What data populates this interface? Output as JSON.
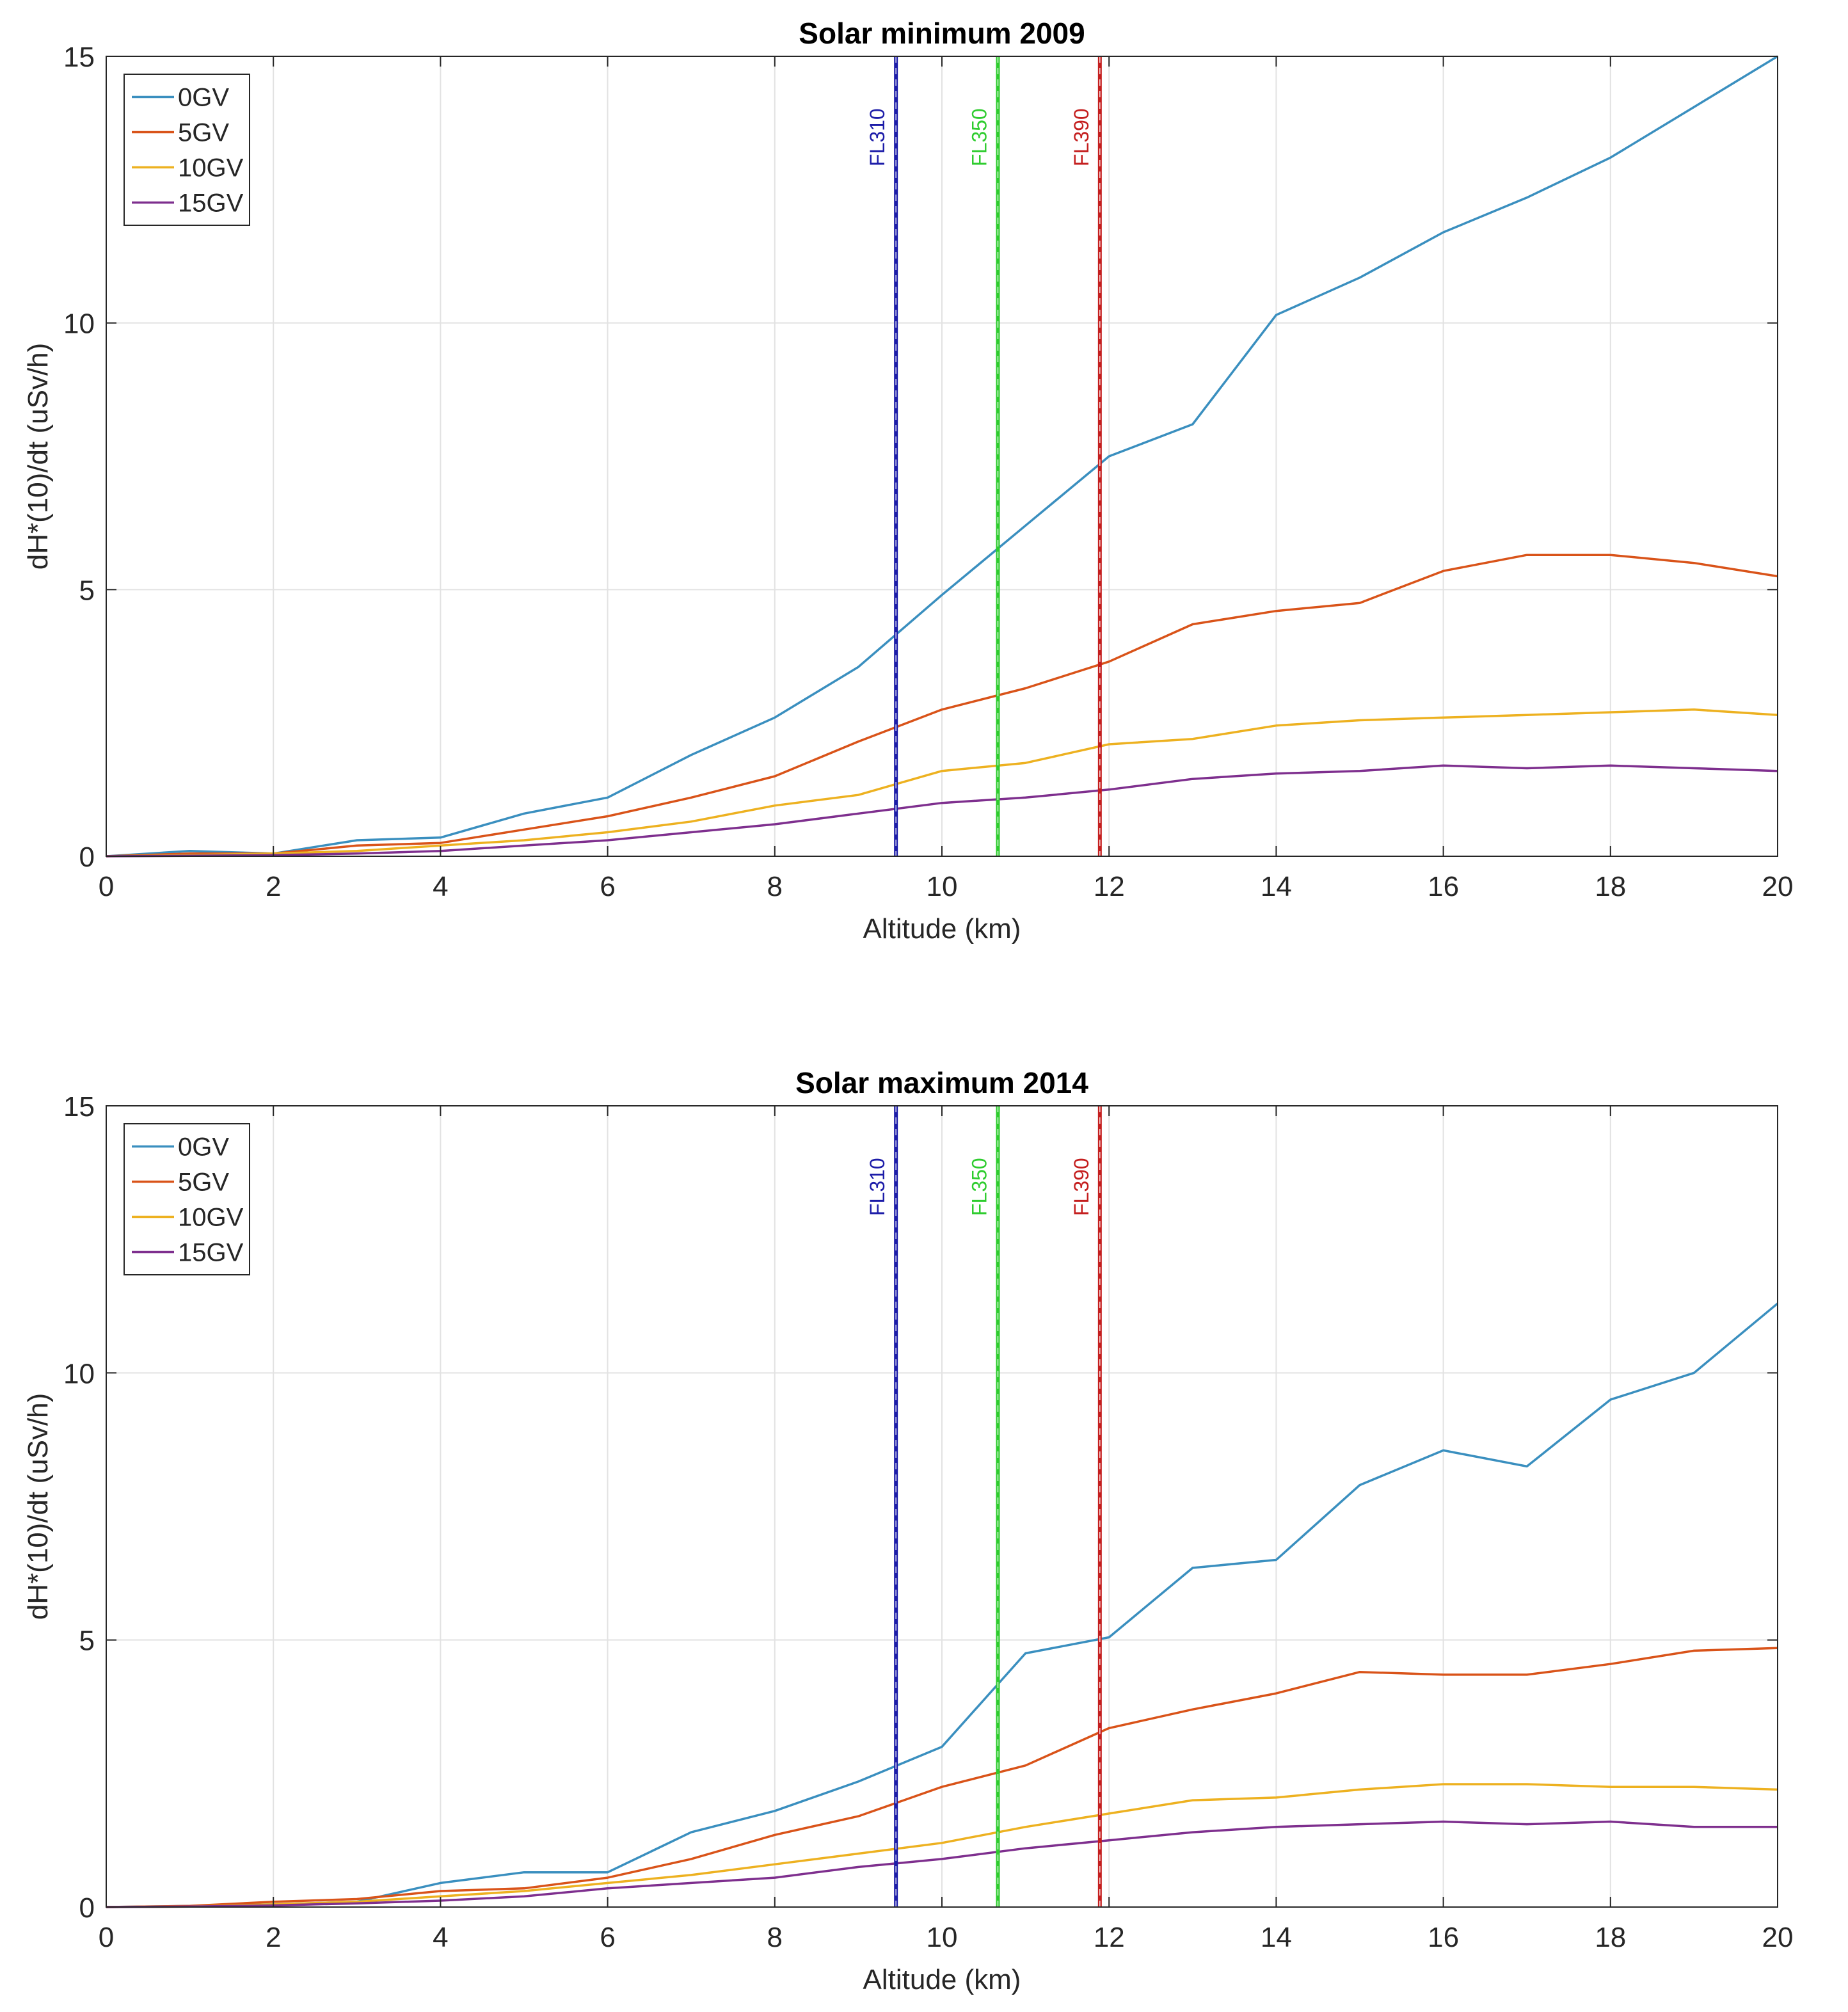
{
  "chart_data": [
    {
      "type": "line",
      "title": "Solar minimum 2009",
      "xlabel": "Altitude (km)",
      "ylabel": "dH*(10)/dt (uSv/h)",
      "xlim": [
        0,
        20
      ],
      "ylim": [
        0,
        15
      ],
      "xticks": [
        0,
        2,
        4,
        6,
        8,
        10,
        12,
        14,
        16,
        18,
        20
      ],
      "yticks": [
        0,
        5,
        10,
        15
      ],
      "grid": true,
      "legend_position": "top-left",
      "x": [
        0,
        1,
        2,
        3,
        4,
        5,
        6,
        7,
        8,
        9,
        10,
        11,
        12,
        13,
        14,
        15,
        16,
        17,
        18,
        19,
        20
      ],
      "series": [
        {
          "name": "0GV",
          "color": "#3a8fbf",
          "values": [
            0,
            0.1,
            0.05,
            0.3,
            0.35,
            0.8,
            1.1,
            1.9,
            2.6,
            3.55,
            4.9,
            6.2,
            7.5,
            8.1,
            10.15,
            10.85,
            11.7,
            12.35,
            13.1,
            14.05,
            15.0
          ]
        },
        {
          "name": "5GV",
          "color": "#d95319",
          "values": [
            0,
            0.05,
            0.05,
            0.2,
            0.25,
            0.5,
            0.75,
            1.1,
            1.5,
            2.15,
            2.75,
            3.15,
            3.65,
            4.35,
            4.6,
            4.75,
            5.35,
            5.65,
            5.65,
            5.5,
            5.25
          ]
        },
        {
          "name": "10GV",
          "color": "#edb120",
          "values": [
            0,
            0.02,
            0.05,
            0.1,
            0.2,
            0.3,
            0.45,
            0.65,
            0.95,
            1.15,
            1.6,
            1.75,
            2.1,
            2.2,
            2.45,
            2.55,
            2.6,
            2.65,
            2.7,
            2.75,
            2.65
          ]
        },
        {
          "name": "15GV",
          "color": "#7e2f8e",
          "values": [
            0,
            0.01,
            0.02,
            0.05,
            0.1,
            0.2,
            0.3,
            0.45,
            0.6,
            0.8,
            1.0,
            1.1,
            1.25,
            1.45,
            1.55,
            1.6,
            1.7,
            1.65,
            1.7,
            1.65,
            1.6
          ]
        }
      ],
      "annotations": [
        {
          "text": "FL310",
          "x": 9.45,
          "color": "#1c1ca8"
        },
        {
          "text": "FL350",
          "x": 10.67,
          "color": "#2ecc2e"
        },
        {
          "text": "FL390",
          "x": 11.89,
          "color": "#c41e1e"
        }
      ]
    },
    {
      "type": "line",
      "title": "Solar maximum 2014",
      "xlabel": "Altitude (km)",
      "ylabel": "dH*(10)/dt (uSv/h)",
      "xlim": [
        0,
        20
      ],
      "ylim": [
        0,
        15
      ],
      "xticks": [
        0,
        2,
        4,
        6,
        8,
        10,
        12,
        14,
        16,
        18,
        20
      ],
      "yticks": [
        0,
        5,
        10,
        15
      ],
      "grid": true,
      "legend_position": "top-left",
      "x": [
        0,
        1,
        2,
        3,
        4,
        5,
        6,
        7,
        8,
        9,
        10,
        11,
        12,
        13,
        14,
        15,
        16,
        17,
        18,
        19,
        20
      ],
      "series": [
        {
          "name": "0GV",
          "color": "#3a8fbf",
          "values": [
            0,
            0.02,
            0.05,
            0.1,
            0.45,
            0.65,
            0.65,
            1.4,
            1.8,
            2.35,
            3.0,
            4.75,
            5.05,
            6.35,
            6.5,
            7.9,
            8.55,
            8.25,
            9.5,
            10.0,
            11.3
          ]
        },
        {
          "name": "5GV",
          "color": "#d95319",
          "values": [
            0,
            0.02,
            0.1,
            0.15,
            0.3,
            0.35,
            0.55,
            0.9,
            1.35,
            1.7,
            2.25,
            2.65,
            3.35,
            3.7,
            4.0,
            4.4,
            4.35,
            4.35,
            4.55,
            4.8,
            4.85
          ]
        },
        {
          "name": "10GV",
          "color": "#edb120",
          "values": [
            0,
            0.01,
            0.05,
            0.1,
            0.2,
            0.3,
            0.45,
            0.6,
            0.8,
            1.0,
            1.2,
            1.5,
            1.75,
            2.0,
            2.05,
            2.2,
            2.3,
            2.3,
            2.25,
            2.25,
            2.2
          ]
        },
        {
          "name": "15GV",
          "color": "#7e2f8e",
          "values": [
            0,
            0.01,
            0.03,
            0.07,
            0.12,
            0.2,
            0.35,
            0.45,
            0.55,
            0.75,
            0.9,
            1.1,
            1.25,
            1.4,
            1.5,
            1.55,
            1.6,
            1.55,
            1.6,
            1.5,
            1.5
          ]
        }
      ],
      "annotations": [
        {
          "text": "FL310",
          "x": 9.45,
          "color": "#1c1ca8"
        },
        {
          "text": "FL350",
          "x": 10.67,
          "color": "#2ecc2e"
        },
        {
          "text": "FL390",
          "x": 11.89,
          "color": "#c41e1e"
        }
      ]
    }
  ]
}
